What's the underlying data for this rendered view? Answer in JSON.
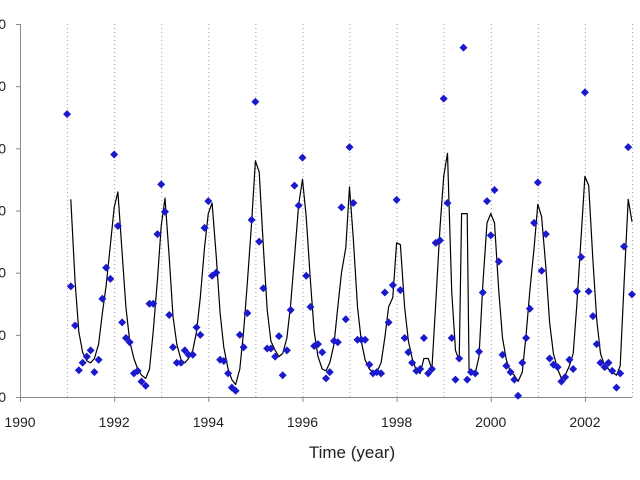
{
  "chart_data": {
    "type": "scatter",
    "title": "",
    "xlabel": "Time (year)",
    "ylabel": "",
    "xlim": [
      1990,
      2003
    ],
    "ylim": [
      0,
      6
    ],
    "x_ticks": [
      1990,
      1992,
      1994,
      1996,
      1998,
      2000,
      2002
    ],
    "y_ticks": [
      0,
      1,
      2,
      3,
      4,
      5,
      6
    ],
    "y_tick_labels": [
      "0",
      "0",
      "0",
      "0",
      "0",
      "0",
      "0"
    ],
    "vertical_gridlines": "dotted, one per year",
    "series": [
      {
        "style": "markers",
        "marker": "diamond",
        "color": "#1a1acc",
        "points": [
          [
            1991.0,
            4.55
          ],
          [
            1991.08,
            1.78
          ],
          [
            1991.17,
            1.15
          ],
          [
            1991.25,
            0.43
          ],
          [
            1991.33,
            0.55
          ],
          [
            1991.42,
            0.65
          ],
          [
            1991.5,
            0.75
          ],
          [
            1991.58,
            0.4
          ],
          [
            1991.67,
            0.6
          ],
          [
            1991.75,
            1.58
          ],
          [
            1991.83,
            2.08
          ],
          [
            1991.92,
            1.9
          ],
          [
            1992.0,
            3.9
          ],
          [
            1992.08,
            2.75
          ],
          [
            1992.17,
            1.2
          ],
          [
            1992.25,
            0.95
          ],
          [
            1992.33,
            0.88
          ],
          [
            1992.42,
            0.38
          ],
          [
            1992.5,
            0.42
          ],
          [
            1992.58,
            0.25
          ],
          [
            1992.67,
            0.18
          ],
          [
            1992.75,
            1.5
          ],
          [
            1992.83,
            1.5
          ],
          [
            1992.92,
            2.62
          ],
          [
            1993.0,
            3.42
          ],
          [
            1993.08,
            2.98
          ],
          [
            1993.17,
            1.32
          ],
          [
            1993.25,
            0.8
          ],
          [
            1993.33,
            0.55
          ],
          [
            1993.42,
            0.55
          ],
          [
            1993.5,
            0.75
          ],
          [
            1993.58,
            0.68
          ],
          [
            1993.67,
            0.68
          ],
          [
            1993.75,
            1.12
          ],
          [
            1993.83,
            1.0
          ],
          [
            1993.92,
            2.72
          ],
          [
            1994.0,
            3.15
          ],
          [
            1994.08,
            1.95
          ],
          [
            1994.17,
            2.0
          ],
          [
            1994.25,
            0.6
          ],
          [
            1994.33,
            0.58
          ],
          [
            1994.42,
            0.38
          ],
          [
            1994.5,
            0.15
          ],
          [
            1994.58,
            0.1
          ],
          [
            1994.67,
            1.0
          ],
          [
            1994.75,
            0.8
          ],
          [
            1994.83,
            1.35
          ],
          [
            1994.92,
            2.85
          ],
          [
            1995.0,
            4.75
          ],
          [
            1995.08,
            2.5
          ],
          [
            1995.17,
            1.75
          ],
          [
            1995.25,
            0.78
          ],
          [
            1995.33,
            0.78
          ],
          [
            1995.42,
            0.65
          ],
          [
            1995.5,
            0.98
          ],
          [
            1995.58,
            0.35
          ],
          [
            1995.67,
            0.75
          ],
          [
            1995.75,
            1.4
          ],
          [
            1995.83,
            3.4
          ],
          [
            1995.92,
            3.08
          ],
          [
            1996.0,
            3.85
          ],
          [
            1996.08,
            1.95
          ],
          [
            1996.17,
            1.45
          ],
          [
            1996.25,
            0.82
          ],
          [
            1996.33,
            0.85
          ],
          [
            1996.42,
            0.72
          ],
          [
            1996.5,
            0.3
          ],
          [
            1996.58,
            0.4
          ],
          [
            1996.67,
            0.9
          ],
          [
            1996.75,
            0.88
          ],
          [
            1996.83,
            3.05
          ],
          [
            1996.92,
            1.25
          ],
          [
            1997.0,
            4.02
          ],
          [
            1997.08,
            3.12
          ],
          [
            1997.17,
            0.92
          ],
          [
            1997.25,
            0.92
          ],
          [
            1997.33,
            0.92
          ],
          [
            1997.42,
            0.52
          ],
          [
            1997.5,
            0.38
          ],
          [
            1997.58,
            0.4
          ],
          [
            1997.67,
            0.38
          ],
          [
            1997.75,
            1.68
          ],
          [
            1997.83,
            1.2
          ],
          [
            1997.92,
            1.8
          ],
          [
            1998.0,
            3.17
          ],
          [
            1998.08,
            1.72
          ],
          [
            1998.17,
            0.95
          ],
          [
            1998.25,
            0.72
          ],
          [
            1998.33,
            0.55
          ],
          [
            1998.42,
            0.42
          ],
          [
            1998.5,
            0.45
          ],
          [
            1998.58,
            0.95
          ],
          [
            1998.67,
            0.38
          ],
          [
            1998.75,
            0.45
          ],
          [
            1998.83,
            2.48
          ],
          [
            1998.92,
            2.52
          ],
          [
            1999.0,
            4.8
          ],
          [
            1999.08,
            3.12
          ],
          [
            1999.17,
            0.95
          ],
          [
            1999.25,
            0.28
          ],
          [
            1999.33,
            0.62
          ],
          [
            1999.42,
            5.62
          ],
          [
            1999.5,
            0.28
          ],
          [
            1999.58,
            0.4
          ],
          [
            1999.67,
            0.38
          ],
          [
            1999.75,
            0.73
          ],
          [
            1999.83,
            1.68
          ],
          [
            1999.92,
            3.15
          ],
          [
            2000.0,
            2.6
          ],
          [
            2000.08,
            3.33
          ],
          [
            2000.17,
            2.18
          ],
          [
            2000.25,
            0.68
          ],
          [
            2000.33,
            0.5
          ],
          [
            2000.42,
            0.4
          ],
          [
            2000.5,
            0.28
          ],
          [
            2000.58,
            0.02
          ],
          [
            2000.67,
            0.55
          ],
          [
            2000.75,
            0.95
          ],
          [
            2000.83,
            1.42
          ],
          [
            2000.92,
            2.8
          ],
          [
            2001.0,
            3.45
          ],
          [
            2001.08,
            2.03
          ],
          [
            2001.17,
            2.62
          ],
          [
            2001.25,
            0.62
          ],
          [
            2001.33,
            0.52
          ],
          [
            2001.42,
            0.48
          ],
          [
            2001.5,
            0.25
          ],
          [
            2001.58,
            0.32
          ],
          [
            2001.67,
            0.6
          ],
          [
            2001.75,
            0.45
          ],
          [
            2001.83,
            1.7
          ],
          [
            2001.92,
            2.25
          ],
          [
            2002.0,
            4.9
          ],
          [
            2002.08,
            1.7
          ],
          [
            2002.17,
            1.3
          ],
          [
            2002.25,
            0.85
          ],
          [
            2002.33,
            0.55
          ],
          [
            2002.42,
            0.48
          ],
          [
            2002.5,
            0.55
          ],
          [
            2002.58,
            0.42
          ],
          [
            2002.67,
            0.15
          ],
          [
            2002.75,
            0.38
          ],
          [
            2002.83,
            2.42
          ],
          [
            2002.92,
            4.02
          ],
          [
            2003.0,
            1.65
          ]
        ]
      },
      {
        "style": "line",
        "color": "#000000",
        "points": [
          [
            1991.08,
            3.18
          ],
          [
            1991.17,
            1.85
          ],
          [
            1991.25,
            1.05
          ],
          [
            1991.33,
            0.72
          ],
          [
            1991.42,
            0.58
          ],
          [
            1991.5,
            0.55
          ],
          [
            1991.58,
            0.62
          ],
          [
            1991.67,
            0.85
          ],
          [
            1991.75,
            1.35
          ],
          [
            1991.83,
            1.8
          ],
          [
            1991.92,
            2.45
          ],
          [
            1992.0,
            3.05
          ],
          [
            1992.08,
            3.3
          ],
          [
            1992.17,
            2.3
          ],
          [
            1992.25,
            1.45
          ],
          [
            1992.33,
            0.9
          ],
          [
            1992.42,
            0.62
          ],
          [
            1992.5,
            0.45
          ],
          [
            1992.58,
            0.35
          ],
          [
            1992.67,
            0.3
          ],
          [
            1992.75,
            0.45
          ],
          [
            1992.83,
            1.05
          ],
          [
            1992.92,
            1.9
          ],
          [
            1993.0,
            2.75
          ],
          [
            1993.08,
            3.2
          ],
          [
            1993.17,
            2.25
          ],
          [
            1993.25,
            1.3
          ],
          [
            1993.33,
            0.85
          ],
          [
            1993.42,
            0.6
          ],
          [
            1993.5,
            0.55
          ],
          [
            1993.58,
            0.62
          ],
          [
            1993.67,
            0.75
          ],
          [
            1993.75,
            1.05
          ],
          [
            1993.83,
            1.6
          ],
          [
            1993.92,
            2.4
          ],
          [
            1994.0,
            2.95
          ],
          [
            1994.08,
            3.12
          ],
          [
            1994.17,
            2.25
          ],
          [
            1994.25,
            1.35
          ],
          [
            1994.33,
            0.8
          ],
          [
            1994.42,
            0.45
          ],
          [
            1994.5,
            0.28
          ],
          [
            1994.58,
            0.2
          ],
          [
            1994.67,
            0.45
          ],
          [
            1994.75,
            1.05
          ],
          [
            1994.83,
            1.85
          ],
          [
            1994.92,
            2.8
          ],
          [
            1995.0,
            3.8
          ],
          [
            1995.08,
            3.62
          ],
          [
            1995.17,
            2.4
          ],
          [
            1995.25,
            1.4
          ],
          [
            1995.33,
            0.9
          ],
          [
            1995.42,
            0.75
          ],
          [
            1995.5,
            0.65
          ],
          [
            1995.58,
            0.7
          ],
          [
            1995.67,
            0.95
          ],
          [
            1995.75,
            1.5
          ],
          [
            1995.83,
            2.25
          ],
          [
            1995.92,
            3.1
          ],
          [
            1996.0,
            3.5
          ],
          [
            1996.08,
            2.9
          ],
          [
            1996.17,
            1.85
          ],
          [
            1996.25,
            1.05
          ],
          [
            1996.33,
            0.65
          ],
          [
            1996.42,
            0.45
          ],
          [
            1996.5,
            0.42
          ],
          [
            1996.58,
            0.55
          ],
          [
            1996.67,
            0.85
          ],
          [
            1996.75,
            1.45
          ],
          [
            1996.83,
            2.0
          ],
          [
            1996.92,
            2.4
          ],
          [
            1997.0,
            3.38
          ],
          [
            1997.08,
            2.55
          ],
          [
            1997.17,
            1.45
          ],
          [
            1997.25,
            0.9
          ],
          [
            1997.33,
            0.6
          ],
          [
            1997.42,
            0.45
          ],
          [
            1997.5,
            0.4
          ],
          [
            1997.58,
            0.4
          ],
          [
            1997.67,
            0.55
          ],
          [
            1997.75,
            0.95
          ],
          [
            1997.83,
            1.45
          ],
          [
            1997.92,
            1.6
          ],
          [
            1998.0,
            2.48
          ],
          [
            1998.08,
            2.45
          ],
          [
            1998.17,
            1.45
          ],
          [
            1998.25,
            0.9
          ],
          [
            1998.33,
            0.62
          ],
          [
            1998.42,
            0.42
          ],
          [
            1998.5,
            0.38
          ],
          [
            1998.58,
            0.62
          ],
          [
            1998.67,
            0.62
          ],
          [
            1998.75,
            0.45
          ],
          [
            1998.83,
            1.5
          ],
          [
            1998.92,
            2.7
          ],
          [
            1999.0,
            3.55
          ],
          [
            1999.08,
            3.92
          ],
          [
            1999.17,
            1.7
          ],
          [
            1999.25,
            0.75
          ],
          [
            1999.33,
            0.58
          ],
          [
            1999.38,
            2.95
          ],
          [
            1999.5,
            2.95
          ],
          [
            1999.54,
            0.4
          ],
          [
            1999.67,
            0.38
          ],
          [
            1999.75,
            0.65
          ],
          [
            1999.83,
            1.8
          ],
          [
            1999.92,
            2.8
          ],
          [
            2000.0,
            2.95
          ],
          [
            2000.08,
            2.8
          ],
          [
            2000.17,
            1.7
          ],
          [
            2000.25,
            0.95
          ],
          [
            2000.33,
            0.6
          ],
          [
            2000.42,
            0.4
          ],
          [
            2000.5,
            0.35
          ],
          [
            2000.58,
            0.25
          ],
          [
            2000.67,
            0.4
          ],
          [
            2000.75,
            1.0
          ],
          [
            2000.83,
            1.7
          ],
          [
            2000.92,
            2.4
          ],
          [
            2001.0,
            3.1
          ],
          [
            2001.08,
            2.9
          ],
          [
            2001.17,
            2.1
          ],
          [
            2001.25,
            1.2
          ],
          [
            2001.33,
            0.7
          ],
          [
            2001.42,
            0.45
          ],
          [
            2001.5,
            0.3
          ],
          [
            2001.58,
            0.35
          ],
          [
            2001.67,
            0.5
          ],
          [
            2001.75,
            0.7
          ],
          [
            2001.83,
            1.5
          ],
          [
            2001.92,
            2.6
          ],
          [
            2002.0,
            3.55
          ],
          [
            2002.08,
            3.4
          ],
          [
            2002.17,
            2.2
          ],
          [
            2002.25,
            1.25
          ],
          [
            2002.33,
            0.7
          ],
          [
            2002.42,
            0.5
          ],
          [
            2002.5,
            0.45
          ],
          [
            2002.58,
            0.4
          ],
          [
            2002.67,
            0.35
          ],
          [
            2002.75,
            0.5
          ],
          [
            2002.83,
            1.8
          ],
          [
            2002.92,
            3.18
          ],
          [
            2003.0,
            2.82
          ]
        ]
      }
    ],
    "colors": {
      "axis": "#8a8a8a",
      "grid": "#a0a0a0",
      "text": "#222222"
    }
  }
}
